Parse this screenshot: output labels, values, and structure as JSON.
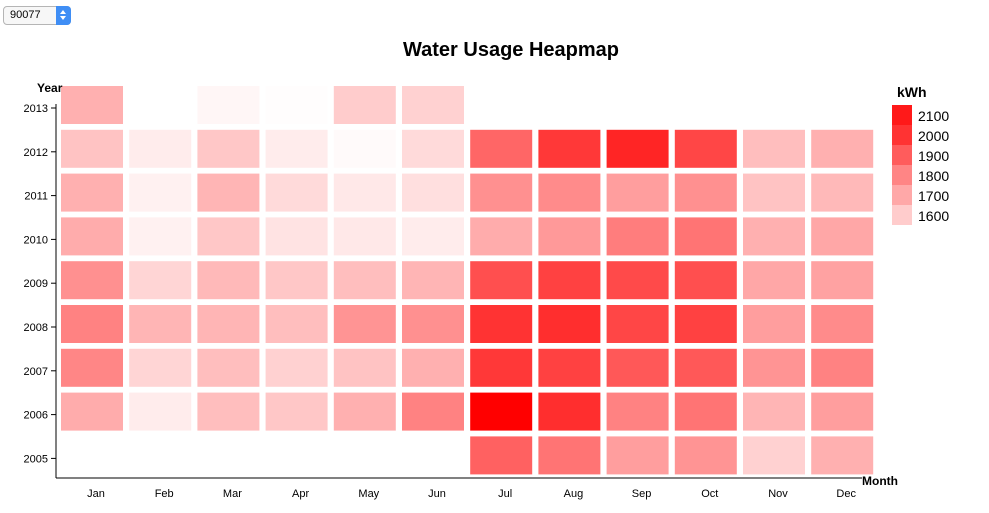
{
  "selector": {
    "value": "90077"
  },
  "chart_data": {
    "type": "heatmap",
    "title": "Water Usage Heapmap",
    "xlabel": "Month",
    "ylabel": "Year",
    "months": [
      "Jan",
      "Feb",
      "Mar",
      "Apr",
      "May",
      "Jun",
      "Jul",
      "Aug",
      "Sep",
      "Oct",
      "Nov",
      "Dec"
    ],
    "years": [
      2005,
      2006,
      2007,
      2008,
      2009,
      2010,
      2011,
      2012,
      2013
    ],
    "value_range": [
      1550,
      2100
    ],
    "values": {
      "2013": [
        1720,
        null,
        1570,
        1555,
        1660,
        1650,
        null,
        null,
        null,
        null,
        null,
        null
      ],
      "2012": [
        1680,
        1590,
        1670,
        1590,
        1560,
        1630,
        1880,
        1980,
        2020,
        1950,
        1690,
        1720
      ],
      "2011": [
        1720,
        1580,
        1710,
        1630,
        1600,
        1620,
        1790,
        1800,
        1760,
        1790,
        1680,
        1700
      ],
      "2010": [
        1730,
        1580,
        1670,
        1610,
        1600,
        1590,
        1730,
        1770,
        1830,
        1850,
        1720,
        1740
      ],
      "2009": [
        1790,
        1640,
        1700,
        1670,
        1690,
        1710,
        1930,
        1960,
        1940,
        1930,
        1740,
        1750
      ],
      "2008": [
        1820,
        1710,
        1710,
        1690,
        1780,
        1790,
        1990,
        2000,
        1950,
        1960,
        1760,
        1800
      ],
      "2007": [
        1810,
        1640,
        1690,
        1650,
        1680,
        1720,
        1980,
        1960,
        1910,
        1910,
        1780,
        1820
      ],
      "2006": [
        1730,
        1590,
        1690,
        1670,
        1720,
        1820,
        2100,
        2000,
        1820,
        1850,
        1710,
        1760
      ],
      "2005": [
        null,
        null,
        null,
        null,
        null,
        null,
        1890,
        1850,
        1760,
        1780,
        1650,
        1720
      ]
    },
    "legend": {
      "title": "kWh",
      "placement": "right",
      "items": [
        {
          "label": "2100",
          "color": "#ff1919"
        },
        {
          "label": "2000",
          "color": "#ff3333"
        },
        {
          "label": "1900",
          "color": "#ff5c5c"
        },
        {
          "label": "1800",
          "color": "#ff8585"
        },
        {
          "label": "1700",
          "color": "#ffa8a8"
        },
        {
          "label": "1600",
          "color": "#ffcccc"
        }
      ]
    },
    "color_low": "#ffffff",
    "color_high": "#ff0000"
  }
}
